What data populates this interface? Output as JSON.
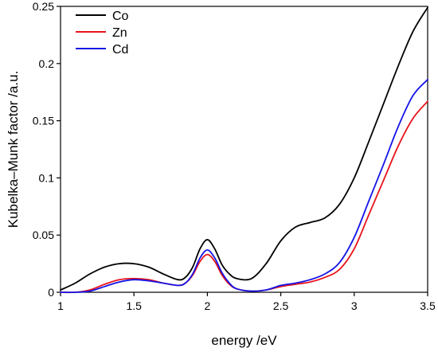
{
  "chart_data": {
    "type": "line",
    "title": "",
    "xlabel": "energy /eV",
    "ylabel": "Kubelka–Munk factor /a.u.",
    "xlim": [
      1.0,
      3.5
    ],
    "ylim": [
      0.0,
      0.25
    ],
    "x_ticks": [
      "1",
      "1.5",
      "2",
      "2.5",
      "3",
      "3.5"
    ],
    "y_ticks": [
      "0",
      "0.05",
      "0.1",
      "0.15",
      "0.2",
      "0.25"
    ],
    "grid": false,
    "legend_position": "top-left",
    "x": [
      1.0,
      1.1,
      1.2,
      1.3,
      1.4,
      1.5,
      1.6,
      1.7,
      1.8,
      1.85,
      1.9,
      1.95,
      2.0,
      2.05,
      2.1,
      2.15,
      2.2,
      2.3,
      2.4,
      2.5,
      2.6,
      2.7,
      2.8,
      2.9,
      3.0,
      3.1,
      3.2,
      3.3,
      3.4,
      3.5
    ],
    "series": [
      {
        "name": "Co",
        "color": "#000000",
        "values": [
          0.002,
          0.008,
          0.016,
          0.022,
          0.025,
          0.025,
          0.022,
          0.016,
          0.011,
          0.013,
          0.022,
          0.038,
          0.046,
          0.038,
          0.024,
          0.016,
          0.012,
          0.012,
          0.025,
          0.045,
          0.057,
          0.061,
          0.065,
          0.077,
          0.1,
          0.132,
          0.165,
          0.198,
          0.228,
          0.249
        ]
      },
      {
        "name": "Zn",
        "color": "#e8141c",
        "values": [
          0.0,
          0.0,
          0.002,
          0.007,
          0.011,
          0.012,
          0.011,
          0.008,
          0.006,
          0.008,
          0.015,
          0.027,
          0.033,
          0.027,
          0.015,
          0.007,
          0.003,
          0.001,
          0.002,
          0.005,
          0.007,
          0.009,
          0.013,
          0.02,
          0.038,
          0.068,
          0.098,
          0.128,
          0.152,
          0.167
        ]
      },
      {
        "name": "Cd",
        "color": "#1414e6",
        "values": [
          0.0,
          0.0,
          0.001,
          0.005,
          0.009,
          0.011,
          0.01,
          0.008,
          0.006,
          0.008,
          0.016,
          0.03,
          0.037,
          0.03,
          0.017,
          0.008,
          0.003,
          0.001,
          0.002,
          0.006,
          0.008,
          0.011,
          0.016,
          0.026,
          0.048,
          0.08,
          0.112,
          0.145,
          0.172,
          0.186
        ]
      }
    ]
  }
}
